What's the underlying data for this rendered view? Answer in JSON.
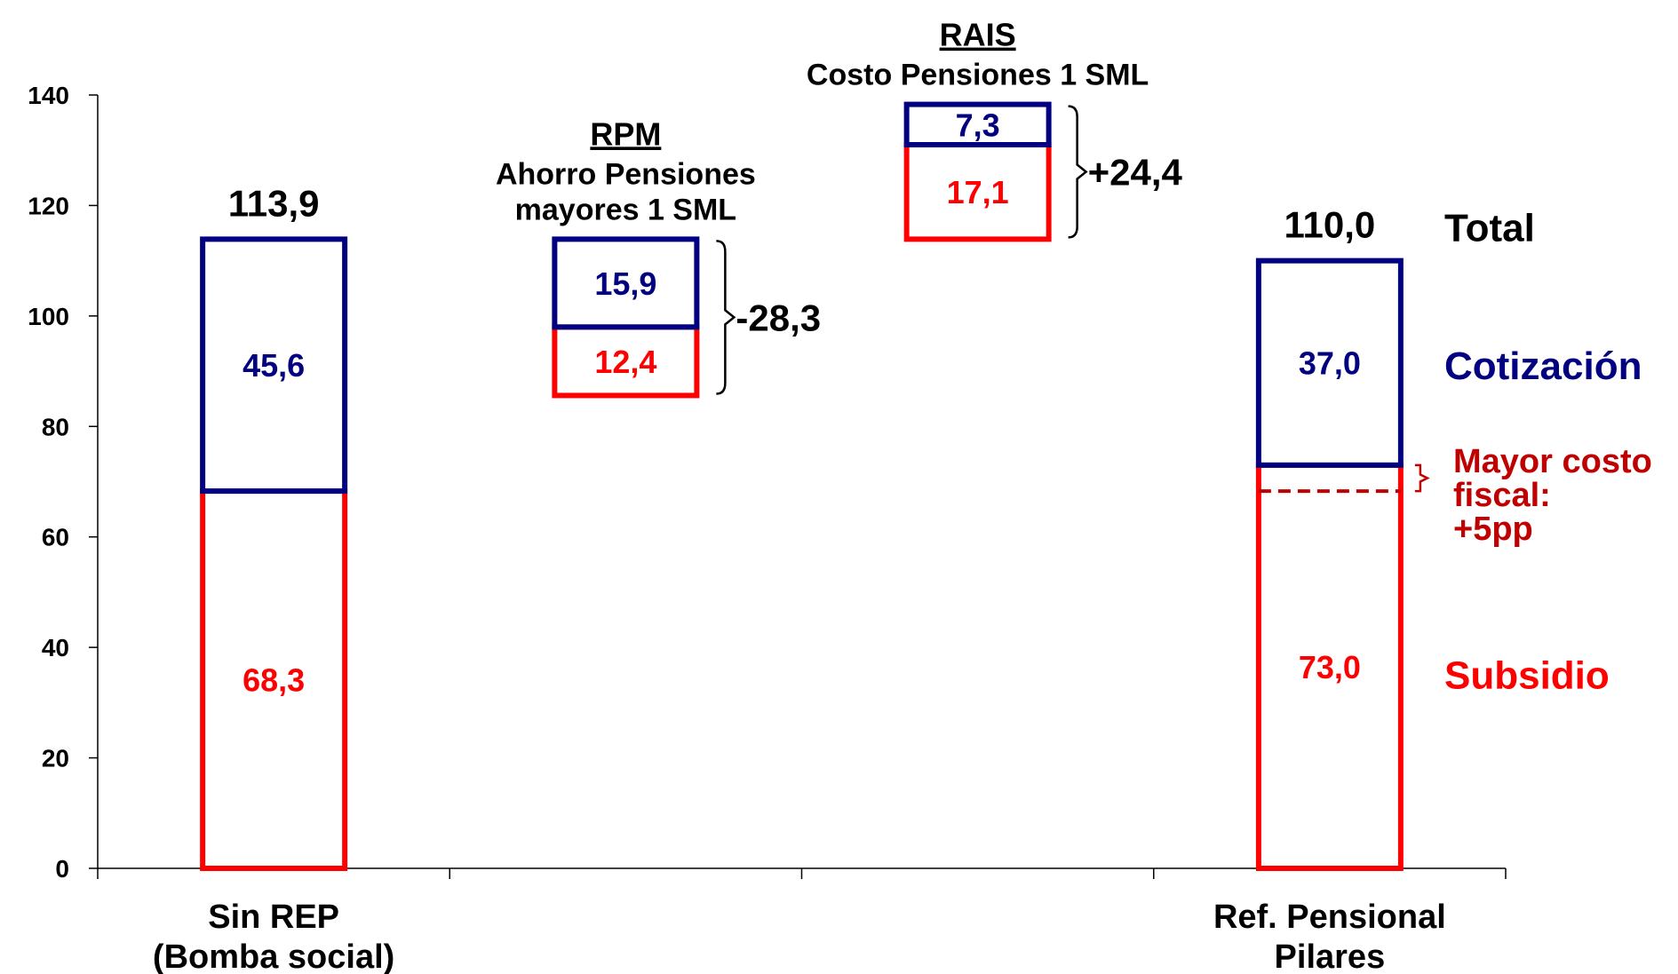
{
  "chart_data": {
    "type": "bar",
    "subtype": "waterfall-stacked",
    "ylim": [
      0,
      140
    ],
    "yticks": [
      0,
      20,
      40,
      60,
      80,
      100,
      120,
      140
    ],
    "ytick_labels": [
      "0",
      "20",
      "40",
      "60",
      "80",
      "100",
      "120",
      "140"
    ],
    "grid": false,
    "categories": [
      {
        "label": "Sin REP",
        "label2": "(Bomba social)"
      },
      {
        "label": "",
        "label2": ""
      },
      {
        "label": "",
        "label2": ""
      },
      {
        "label": "Ref. Pensional",
        "label2": "Pilares"
      }
    ],
    "bars": [
      {
        "category": 0,
        "total_label": "113,9",
        "segments": [
          {
            "from": 0,
            "to": 68.3,
            "label": "68,3",
            "color": "#ff0000"
          },
          {
            "from": 68.3,
            "to": 113.9,
            "label": "45,6",
            "color": "#000080"
          }
        ]
      },
      {
        "category": 1,
        "title": "RPM",
        "subtitle_lines": [
          "Ahorro Pensiones",
          "mayores 1 SML"
        ],
        "bracket_label": "-28,3",
        "segments": [
          {
            "from": 85.6,
            "to": 98.0,
            "label": "12,4",
            "color": "#ff0000"
          },
          {
            "from": 98.0,
            "to": 113.9,
            "label": "15,9",
            "color": "#000080"
          }
        ]
      },
      {
        "category": 2,
        "title": "RAIS",
        "subtitle_lines": [
          "Costo Pensiones 1 SML"
        ],
        "bracket_label": "+24,4",
        "segments": [
          {
            "from": 113.9,
            "to": 131.0,
            "label": "17,1",
            "color": "#ff0000"
          },
          {
            "from": 131.0,
            "to": 138.3,
            "label": "7,3",
            "color": "#000080"
          }
        ]
      },
      {
        "category": 3,
        "total_label": "110,0",
        "dashed_at": 68.3,
        "segments": [
          {
            "from": 0,
            "to": 73.0,
            "label": "73,0",
            "color": "#ff0000"
          },
          {
            "from": 73.0,
            "to": 110.0,
            "label": "37,0",
            "color": "#000080"
          }
        ]
      }
    ],
    "legend": {
      "placement": "right",
      "items": [
        {
          "text": "Total",
          "color": "#000000",
          "y": 116
        },
        {
          "text": "Cotización",
          "color": "#000080",
          "y": 91
        },
        {
          "text": "Subsidio",
          "color": "#ff0000",
          "y": 35
        }
      ]
    },
    "annotation": {
      "lines": [
        "Mayor costo",
        "fiscal:",
        "+5pp"
      ],
      "color": "#c00000",
      "from": 68.3,
      "to": 73.0
    }
  }
}
